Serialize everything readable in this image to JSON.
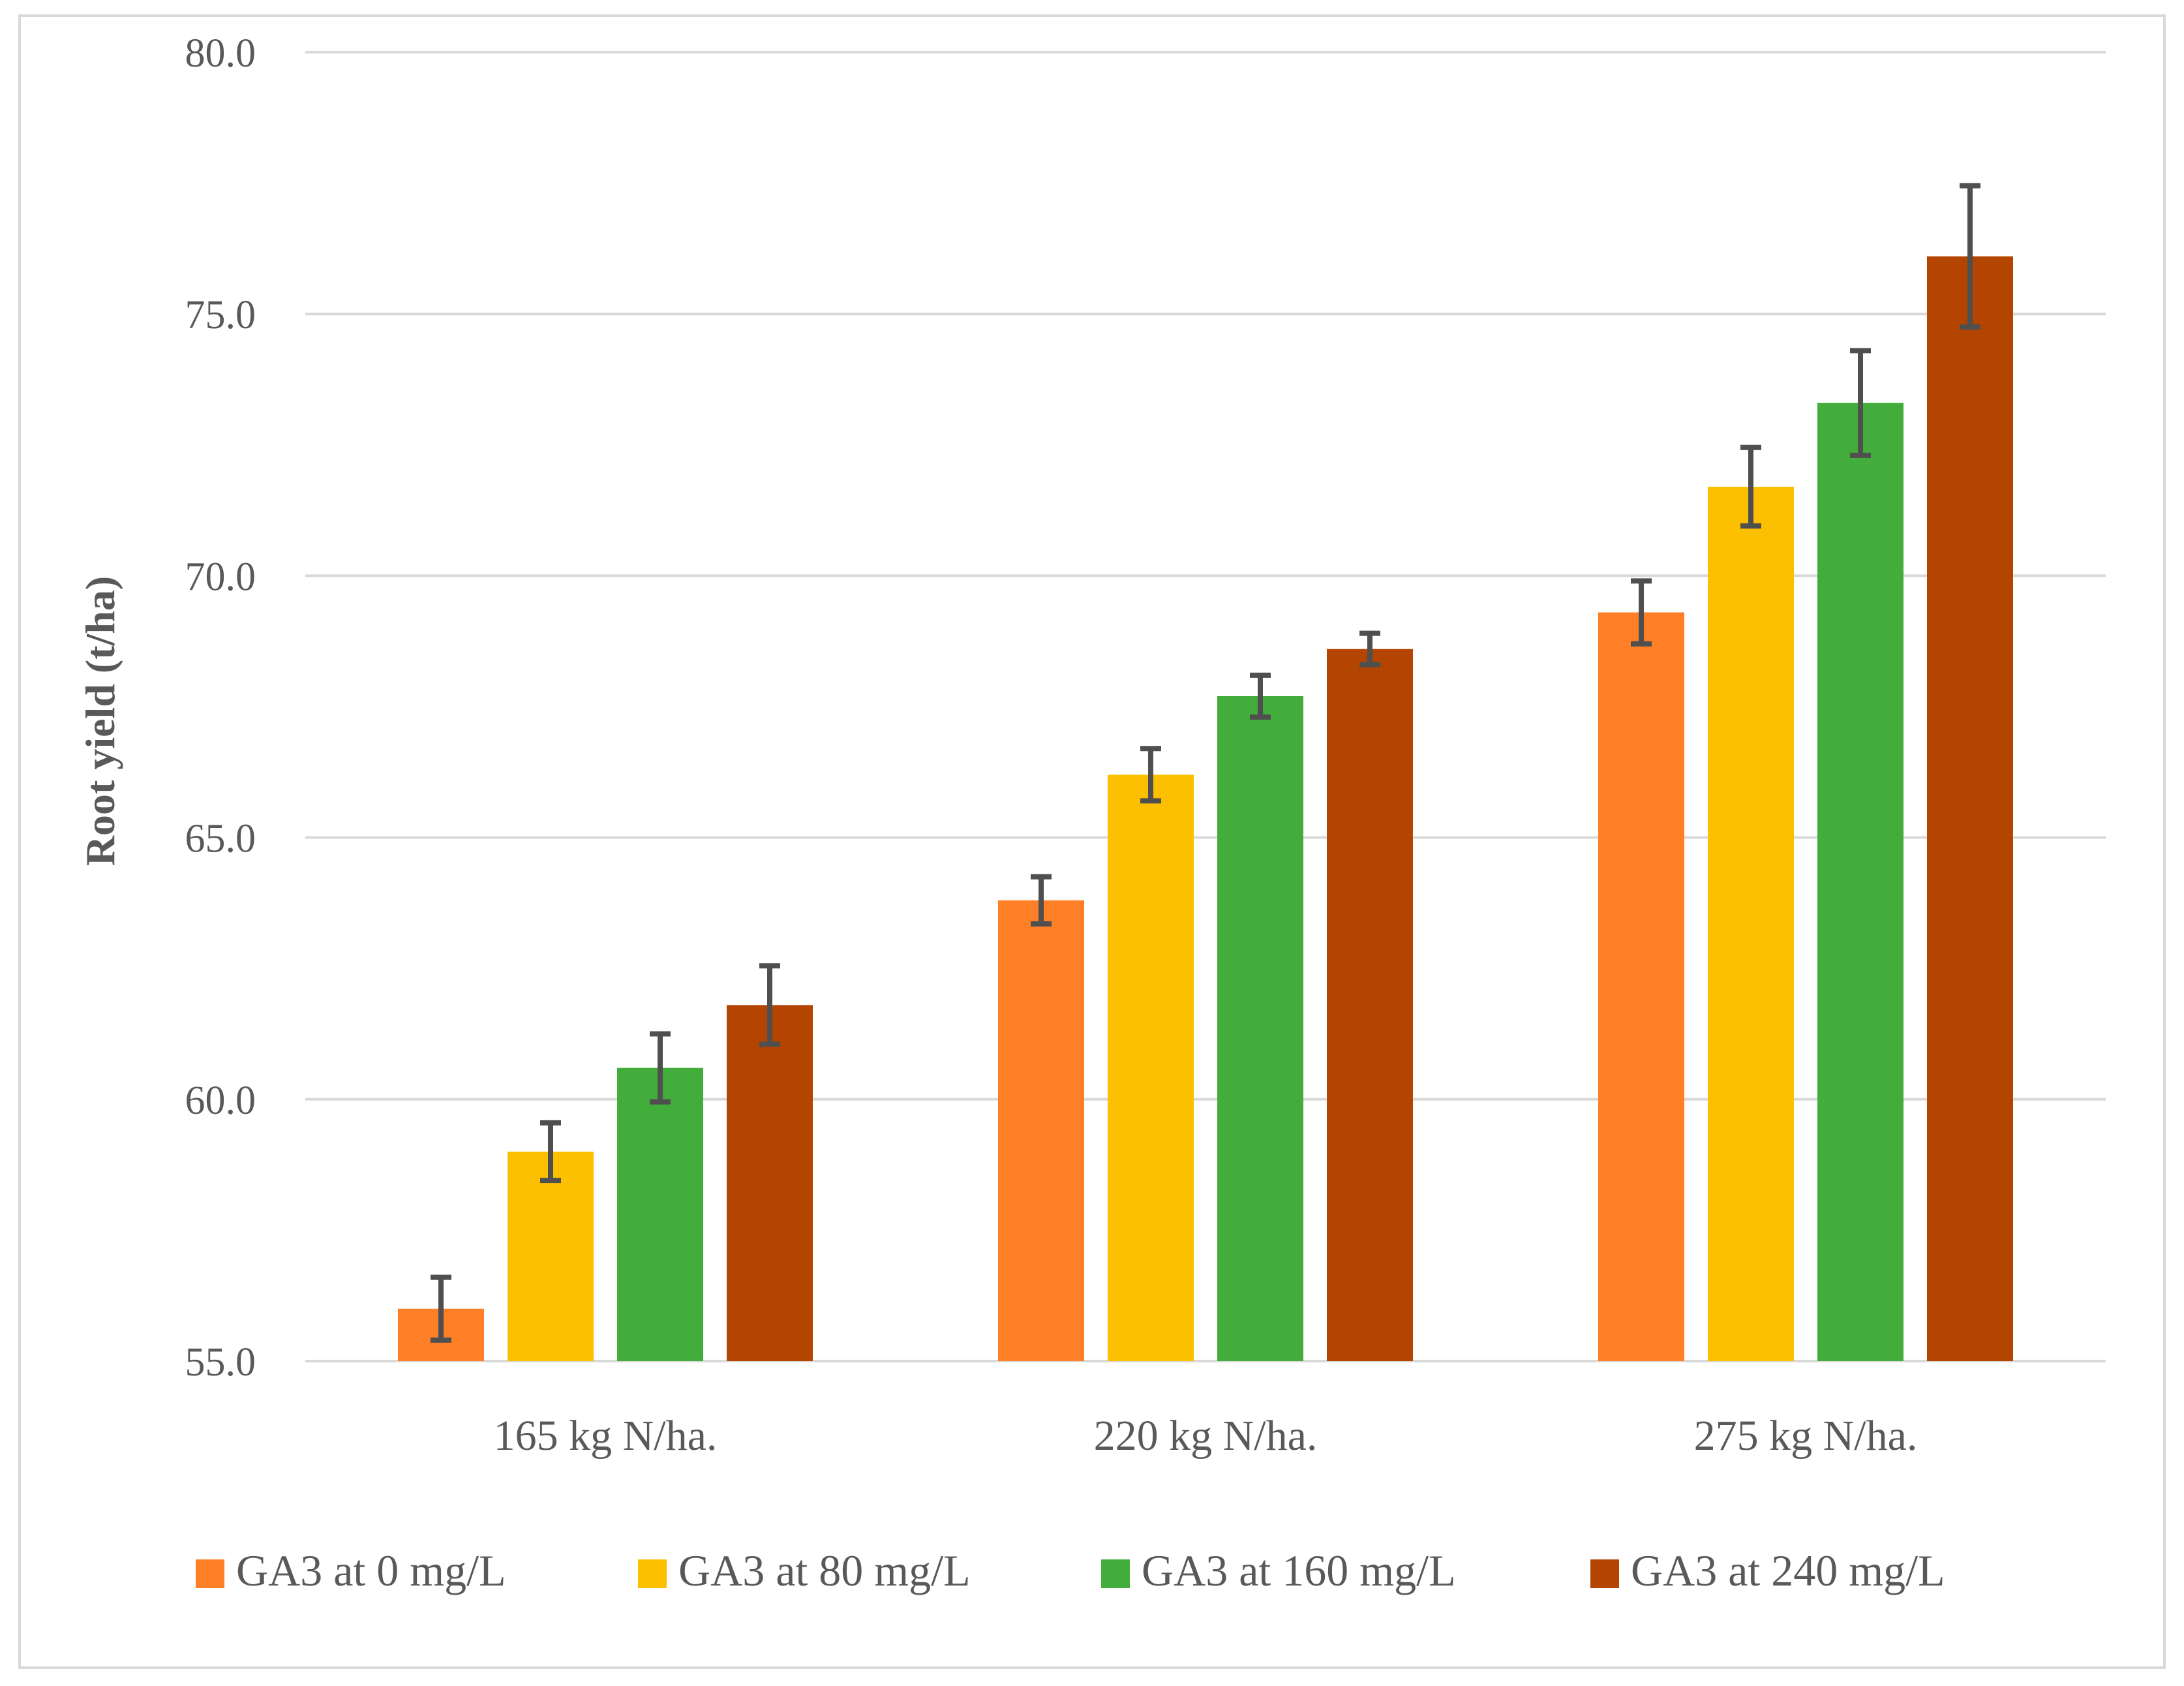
{
  "chart_data": {
    "type": "bar",
    "title": "",
    "xlabel": "",
    "ylabel": "Root yield (t/ha)",
    "ylim": [
      55.0,
      80.0
    ],
    "yticks": [
      "55.0",
      "60.0",
      "65.0",
      "70.0",
      "75.0",
      "80.0"
    ],
    "ytick_values": [
      55,
      60,
      65,
      70,
      75,
      80
    ],
    "grid": true,
    "legend_position": "bottom",
    "categories": [
      "165 kg N/ha.",
      "220 kg N/ha.",
      "275 kg N/ha."
    ],
    "series": [
      {
        "name": "GA3 at 0 mg/L",
        "color": "#fe7f26",
        "values": [
          56.0,
          63.8,
          69.3
        ],
        "errors": [
          0.6,
          0.45,
          0.6
        ]
      },
      {
        "name": "GA3 at 80 mg/L",
        "color": "#fdc000",
        "values": [
          59.0,
          66.2,
          71.7
        ],
        "errors": [
          0.55,
          0.5,
          0.75
        ]
      },
      {
        "name": "GA3 at 160 mg/L",
        "color": "#42ad3a",
        "values": [
          60.6,
          67.7,
          73.3
        ],
        "errors": [
          0.65,
          0.4,
          1.0
        ]
      },
      {
        "name": "GA3 at 240 mg/L",
        "color": "#b44500",
        "values": [
          61.8,
          68.6,
          76.1
        ],
        "errors": [
          0.75,
          0.3,
          1.35
        ]
      }
    ],
    "error_bar_color": "#4f4f4f",
    "gridline_color": "#d9d9d9",
    "text_color": "#595959"
  }
}
